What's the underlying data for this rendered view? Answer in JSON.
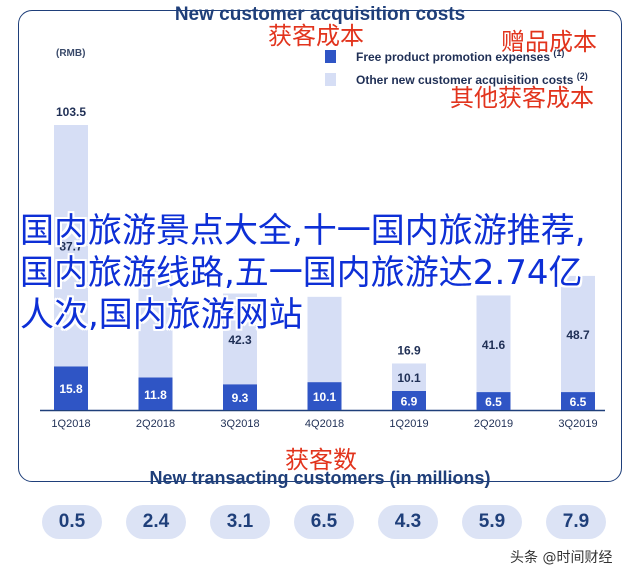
{
  "chart_data": {
    "type": "bar",
    "title": "New customer acquisition costs",
    "unit": "(RMB)",
    "categories": [
      "1Q2018",
      "2Q2018",
      "3Q2018",
      "4Q2018",
      "1Q2019",
      "2Q2019",
      "3Q2019"
    ],
    "series": [
      {
        "name": "Free product promotion expenses",
        "note": "(1)",
        "color": "#2f55c5",
        "values": [
          15.8,
          11.8,
          9.3,
          10.1,
          6.9,
          6.5,
          6.5
        ]
      },
      {
        "name": "Other new customer acquisition costs",
        "note": "(2)",
        "color": "#d6def5",
        "values": [
          87.7,
          40.0,
          33.0,
          31.0,
          10.0,
          35.1,
          42.2
        ]
      }
    ],
    "totals": [
      "103.5",
      "",
      "",
      "",
      "16.9",
      "",
      ""
    ],
    "other_labels": [
      "87.7",
      "",
      "42.3",
      "",
      "10.1",
      "41.6",
      "48.7"
    ],
    "stacked": true,
    "ylim": [
      0,
      110
    ],
    "grid": false
  },
  "annotations": {
    "cn_acq_cost": "获客成本",
    "cn_free_cost": "赠品成本",
    "cn_other_cost": "其他获客成本",
    "cn_customers": "获客数"
  },
  "overlay": {
    "headline": "国内旅游景点大全,十一国内旅游推荐,国内旅游线路,五一国内旅游达2.74亿人次,国内旅游网站"
  },
  "transacting": {
    "title": "New transacting customers (in millions)",
    "values": [
      "0.5",
      "2.4",
      "3.1",
      "6.5",
      "4.3",
      "5.9",
      "7.9"
    ]
  },
  "watermark": "头条 @时间财经",
  "colors": {
    "navy": "#1f3f7a",
    "dark_blue": "#2f55c5",
    "light_blue": "#d6def5",
    "red": "#e2341d"
  }
}
